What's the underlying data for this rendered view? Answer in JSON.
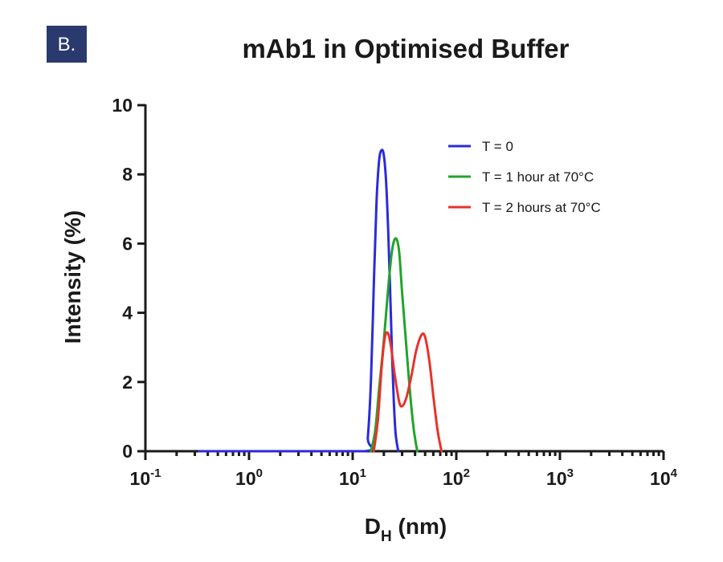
{
  "panel_label": "B.",
  "colors": {
    "panel_label_bg": "#2a3a6e",
    "axis": "#1a1a1a"
  },
  "chart_data": {
    "type": "line",
    "title": "mAb1 in Optimised Buffer",
    "xlabel_main": "D",
    "xlabel_sub": "H",
    "xlabel_unit": " (nm)",
    "ylabel": "Intensity (%)",
    "x_scale": "log",
    "xlim": [
      0.1,
      10000
    ],
    "ylim": [
      0,
      10
    ],
    "x_ticks": [
      {
        "base": "10",
        "exp": "-1",
        "value": 0.1
      },
      {
        "base": "10",
        "exp": "0",
        "value": 1
      },
      {
        "base": "10",
        "exp": "1",
        "value": 10
      },
      {
        "base": "10",
        "exp": "2",
        "value": 100
      },
      {
        "base": "10",
        "exp": "3",
        "value": 1000
      },
      {
        "base": "10",
        "exp": "4",
        "value": 10000
      }
    ],
    "y_ticks": [
      {
        "label": "0",
        "value": 0
      },
      {
        "label": "2",
        "value": 2
      },
      {
        "label": "4",
        "value": 4
      },
      {
        "label": "6",
        "value": 6
      },
      {
        "label": "8",
        "value": 8
      },
      {
        "label": "10",
        "value": 10
      }
    ],
    "grid": false,
    "legend_position": "top-right",
    "series": [
      {
        "name": "T = 0",
        "color": "#2b2bd9",
        "points": [
          [
            0.33,
            0
          ],
          [
            1.7,
            0
          ],
          [
            13.2,
            0
          ],
          [
            14.0,
            0.4
          ],
          [
            15.0,
            2.0
          ],
          [
            16.0,
            4.8
          ],
          [
            17.0,
            7.2
          ],
          [
            18.0,
            8.4
          ],
          [
            19.0,
            8.7
          ],
          [
            20.0,
            8.55
          ],
          [
            21.0,
            7.8
          ],
          [
            22.0,
            6.4
          ],
          [
            23.0,
            4.6
          ],
          [
            24.0,
            2.8
          ],
          [
            25.0,
            1.4
          ],
          [
            26.0,
            0.5
          ],
          [
            27.5,
            0
          ]
        ]
      },
      {
        "name": "T = 1 hour at 70°C",
        "color": "#22a32b",
        "points": [
          [
            15.0,
            0
          ],
          [
            16.5,
            0.6
          ],
          [
            18.0,
            1.8
          ],
          [
            20.0,
            3.2
          ],
          [
            22.0,
            4.7
          ],
          [
            24.0,
            5.8
          ],
          [
            26.0,
            6.15
          ],
          [
            28.0,
            5.8
          ],
          [
            30.0,
            4.6
          ],
          [
            33.0,
            3.0
          ],
          [
            36.0,
            1.6
          ],
          [
            39.0,
            0.6
          ],
          [
            42.0,
            0
          ]
        ]
      },
      {
        "name": "T = 2 hours at 70°C",
        "color": "#e8322b",
        "points": [
          [
            16.0,
            0
          ],
          [
            17.5,
            0.9
          ],
          [
            19.0,
            2.4
          ],
          [
            20.5,
            3.3
          ],
          [
            22.0,
            3.4
          ],
          [
            23.5,
            3.0
          ],
          [
            25.5,
            2.2
          ],
          [
            28.0,
            1.45
          ],
          [
            30.0,
            1.3
          ],
          [
            33.0,
            1.55
          ],
          [
            37.0,
            2.2
          ],
          [
            41.0,
            2.9
          ],
          [
            46.0,
            3.35
          ],
          [
            50.0,
            3.3
          ],
          [
            55.0,
            2.6
          ],
          [
            60.0,
            1.6
          ],
          [
            66.0,
            0.6
          ],
          [
            72.0,
            0
          ]
        ]
      }
    ]
  }
}
